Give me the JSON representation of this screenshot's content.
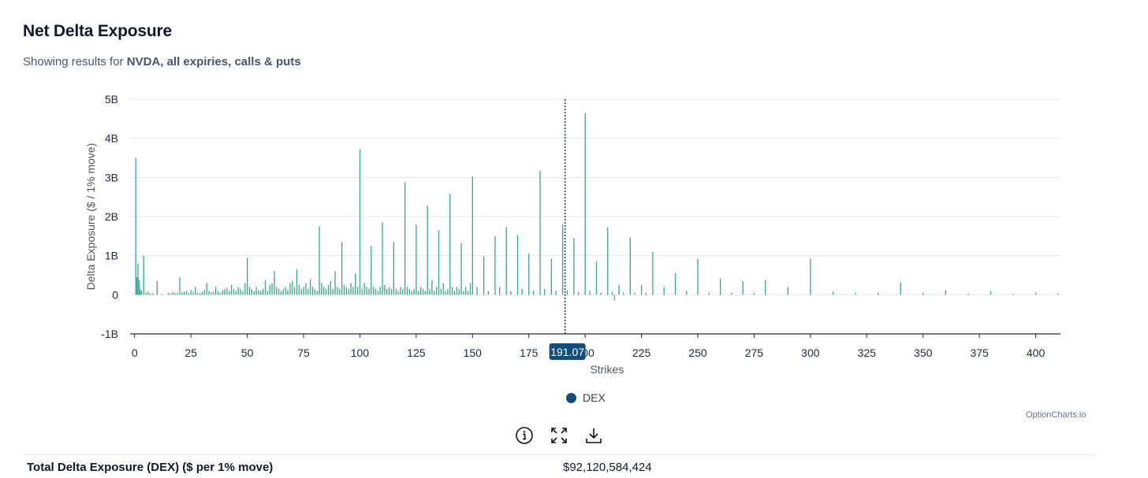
{
  "header": {
    "title": "Net Delta Exposure",
    "subtitle_prefix": "Showing results for ",
    "subtitle_bold": "NVDA, all expiries, calls & puts"
  },
  "chart_data": {
    "type": "bar",
    "title": "Net Delta Exposure",
    "xlabel": "Strikes",
    "ylabel": "Delta Exposure ($ / 1% move)",
    "xlim": [
      -2,
      411
    ],
    "ylim": [
      -1,
      5
    ],
    "x_ticks": [
      0,
      25,
      50,
      75,
      100,
      125,
      150,
      175,
      200,
      225,
      250,
      275,
      300,
      325,
      350,
      375,
      400
    ],
    "y_ticks": [
      -1,
      0,
      1,
      2,
      3,
      4,
      5
    ],
    "y_tick_labels": [
      "-1B",
      "0",
      "1B",
      "2B",
      "3B",
      "4B",
      "5B"
    ],
    "y_unit": "B",
    "grid": "horizontal",
    "legend": "bottom-center",
    "spot_price": 191.07,
    "spot_label": "191.07",
    "series": [
      {
        "name": "DEX",
        "legend_color": "#134e7a",
        "positive_color": "#36a692",
        "negative_color": "#e06c75",
        "x": [
          0.5,
          1,
          1.5,
          2,
          2.5,
          3,
          4,
          5,
          6,
          7,
          8,
          10,
          12,
          15,
          16,
          17,
          18,
          19,
          20,
          21,
          22,
          23,
          24,
          25,
          26,
          27,
          28,
          29,
          30,
          31,
          32,
          33,
          34,
          35,
          36,
          37,
          38,
          39,
          40,
          41,
          42,
          43,
          44,
          45,
          46,
          47,
          48,
          49,
          50,
          51,
          52,
          53,
          54,
          55,
          56,
          57,
          58,
          59,
          60,
          61,
          62,
          63,
          64,
          65,
          66,
          67,
          68,
          69,
          70,
          71,
          72,
          73,
          74,
          75,
          76,
          77,
          78,
          79,
          80,
          81,
          82,
          83,
          84,
          85,
          86,
          87,
          88,
          89,
          90,
          91,
          92,
          93,
          94,
          95,
          96,
          97,
          98,
          99,
          100,
          101,
          102,
          103,
          104,
          105,
          106,
          107,
          108,
          109,
          110,
          111,
          112,
          113,
          114,
          115,
          116,
          117,
          118,
          119,
          120,
          121,
          122,
          123,
          124,
          125,
          126,
          127,
          128,
          129,
          130,
          131,
          132,
          133,
          134,
          135,
          136,
          137,
          138,
          139,
          140,
          141,
          142,
          143,
          144,
          145,
          146,
          147,
          148,
          149,
          150,
          152,
          155,
          157,
          160,
          162,
          165,
          167,
          170,
          172,
          175,
          177,
          180,
          182,
          185,
          187,
          190,
          192,
          195,
          197,
          200,
          202,
          205,
          207,
          210,
          212,
          213,
          215,
          217,
          220,
          222,
          225,
          227,
          230,
          235,
          240,
          245,
          250,
          255,
          260,
          265,
          270,
          275,
          280,
          290,
          300,
          310,
          320,
          330,
          340,
          350,
          360,
          370,
          380,
          390,
          400,
          410
        ],
        "values": [
          3.5,
          0.45,
          0.8,
          0.38,
          0.15,
          0.1,
          1.0,
          0.05,
          0.08,
          0.03,
          0.04,
          0.35,
          0.02,
          0.05,
          0.03,
          0.08,
          0.04,
          0.05,
          0.45,
          0.06,
          0.08,
          0.1,
          0.05,
          0.12,
          0.06,
          0.2,
          0.05,
          0.04,
          0.08,
          0.12,
          0.3,
          0.1,
          0.06,
          0.08,
          0.2,
          0.1,
          0.05,
          0.12,
          0.15,
          0.18,
          0.1,
          0.25,
          0.15,
          0.1,
          0.2,
          0.15,
          0.1,
          0.3,
          0.95,
          0.2,
          0.15,
          0.1,
          0.2,
          0.12,
          0.1,
          0.15,
          0.38,
          0.1,
          0.25,
          0.3,
          0.6,
          0.2,
          0.15,
          0.1,
          0.15,
          0.2,
          0.12,
          0.3,
          0.35,
          0.2,
          0.65,
          0.25,
          0.15,
          0.2,
          0.3,
          0.15,
          0.4,
          0.2,
          0.15,
          0.1,
          1.75,
          0.3,
          0.2,
          0.15,
          0.25,
          0.35,
          0.15,
          0.6,
          0.2,
          0.15,
          1.35,
          0.25,
          0.2,
          0.15,
          0.3,
          0.2,
          0.55,
          0.2,
          3.72,
          0.15,
          0.3,
          0.2,
          0.15,
          1.25,
          0.2,
          0.15,
          0.1,
          0.2,
          1.85,
          0.25,
          0.15,
          0.2,
          0.15,
          1.35,
          0.15,
          0.1,
          0.2,
          0.15,
          2.88,
          0.2,
          0.15,
          0.1,
          0.15,
          1.8,
          0.1,
          0.2,
          0.15,
          0.1,
          2.28,
          0.15,
          0.38,
          0.1,
          0.2,
          1.65,
          0.15,
          0.3,
          0.1,
          0.15,
          2.58,
          0.2,
          0.1,
          0.2,
          0.15,
          1.32,
          0.1,
          0.2,
          0.1,
          0.3,
          3.02,
          0.2,
          0.98,
          0.1,
          1.5,
          0.2,
          1.73,
          0.1,
          1.53,
          0.15,
          1.05,
          0.1,
          3.18,
          0.15,
          0.92,
          0.1,
          1.8,
          0.12,
          1.45,
          0.08,
          4.65,
          0.1,
          0.85,
          0.05,
          1.72,
          0.08,
          -0.15,
          0.25,
          0.05,
          1.47,
          0.05,
          0.25,
          0.05,
          1.1,
          0.2,
          0.55,
          0.1,
          0.92,
          0.05,
          0.42,
          0.05,
          0.35,
          0.05,
          0.38,
          0.2,
          0.93,
          0.08,
          0.05,
          0.05,
          0.32,
          0.05,
          0.12,
          0.03,
          0.1,
          0.03,
          0.05,
          0.03
        ]
      }
    ]
  },
  "legend": {
    "label": "DEX",
    "color": "#134e7a"
  },
  "credit": "OptionCharts.io",
  "toolbar": {
    "info_icon": "info-circle-icon",
    "expand_icon": "expand-arrows-icon",
    "download_icon": "download-tray-icon"
  },
  "total": {
    "label": "Total Delta Exposure (DEX) ($ per 1% move)",
    "value": "$92,120,584,424"
  }
}
